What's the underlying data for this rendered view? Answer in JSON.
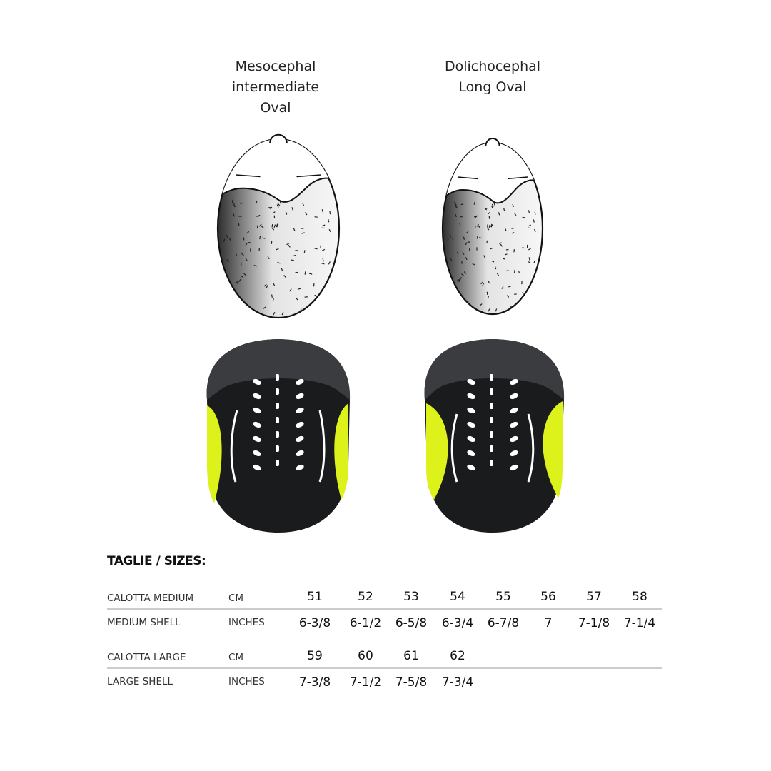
{
  "columns": [
    {
      "label_lines": [
        "Mesocephal",
        "intermediate",
        "Oval"
      ]
    },
    {
      "label_lines": [
        "Dolichocephal",
        "Long  Oval"
      ]
    }
  ],
  "sizes": {
    "title": "TAGLIE / SIZES:",
    "groups": [
      {
        "rows": [
          {
            "label": "CALOTTA MEDIUM",
            "unit": "CM",
            "values": [
              51,
              52,
              53,
              54,
              55,
              56,
              57,
              58
            ]
          },
          {
            "label": "MEDIUM SHELL",
            "unit": "INCHES",
            "values": [
              "6-3/8",
              "6-1/2",
              "6-5/8",
              "6-3/4",
              "6-7/8",
              "7",
              "7-1/8",
              "7-1/4"
            ]
          }
        ]
      },
      {
        "rows": [
          {
            "label": "CALOTTA LARGE",
            "unit": "CM",
            "values": [
              59,
              60,
              61,
              62
            ]
          },
          {
            "label": "LARGE SHELL",
            "unit": "INCHES",
            "values": [
              "7-3/8",
              "7-1/2",
              "7-5/8",
              "7-3/4"
            ]
          }
        ]
      }
    ]
  }
}
